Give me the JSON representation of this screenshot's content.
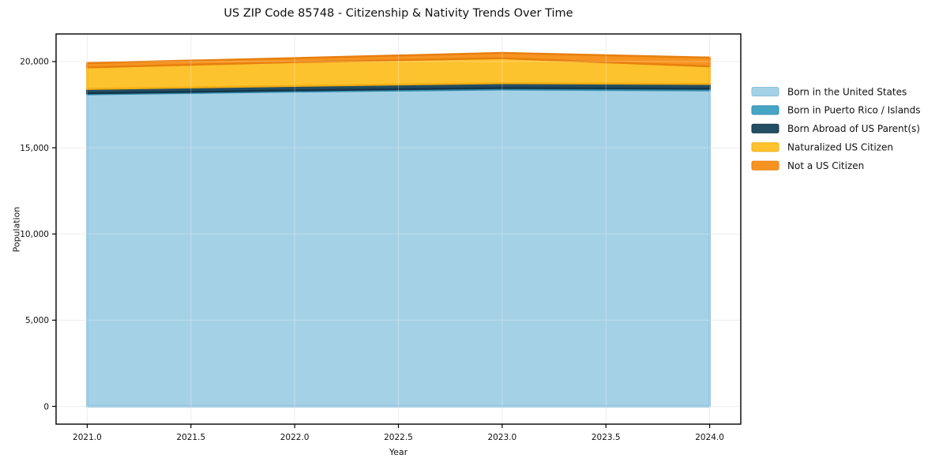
{
  "title": "US ZIP Code 85748 - Citizenship & Nativity Trends Over Time",
  "chart_data": {
    "type": "area",
    "stacked": true,
    "title": "US ZIP Code 85748 - Citizenship & Nativity Trends Over Time",
    "xlabel": "Year",
    "ylabel": "Population",
    "x": [
      2021,
      2022,
      2023,
      2024
    ],
    "series": [
      {
        "name": "Born in the United States",
        "color": "#a5d1e6",
        "edge_color": "#8bc0da",
        "values": [
          18100,
          18260,
          18380,
          18330
        ]
      },
      {
        "name": "Born in Puerto Rico / Islands",
        "color": "#46a5c4",
        "edge_color": "#358fb0",
        "values": [
          60,
          70,
          80,
          90
        ]
      },
      {
        "name": "Born Abroad of US Parent(s)",
        "color": "#234e63",
        "edge_color": "#14364a",
        "values": [
          250,
          260,
          290,
          280
        ]
      },
      {
        "name": "Naturalized US Citizen",
        "color": "#fdc32f",
        "edge_color": "#f3ae12",
        "values": [
          1250,
          1380,
          1450,
          1020
        ]
      },
      {
        "name": "Not a US Citizen",
        "color": "#f79421",
        "edge_color": "#e87f0e",
        "values": [
          250,
          230,
          300,
          510
        ]
      }
    ],
    "totals": [
      19910,
      20200,
      20500,
      20230
    ],
    "xlim": [
      2020.85,
      2024.15
    ],
    "ylim": [
      -1030,
      21600
    ],
    "x_ticks": {
      "values": [
        2021,
        2021.5,
        2022,
        2022.5,
        2023,
        2023.5,
        2024
      ],
      "labels": [
        "2021.0",
        "2021.5",
        "2022.0",
        "2022.5",
        "2023.0",
        "2023.5",
        "2024.0"
      ]
    },
    "y_ticks": {
      "values": [
        0,
        5000,
        10000,
        15000,
        20000
      ],
      "labels": [
        "0",
        "5,000",
        "10,000",
        "15,000",
        "20,000"
      ]
    },
    "grid": true,
    "grid_color": "#e8e8e8",
    "frame_color": "#000000",
    "background_color": "#ffffff",
    "legend_position": "right",
    "legend_labels": [
      "Born in the United States",
      "Born in Puerto Rico / Islands",
      "Born Abroad of US Parent(s)",
      "Naturalized US Citizen",
      "Not a US Citizen"
    ]
  }
}
